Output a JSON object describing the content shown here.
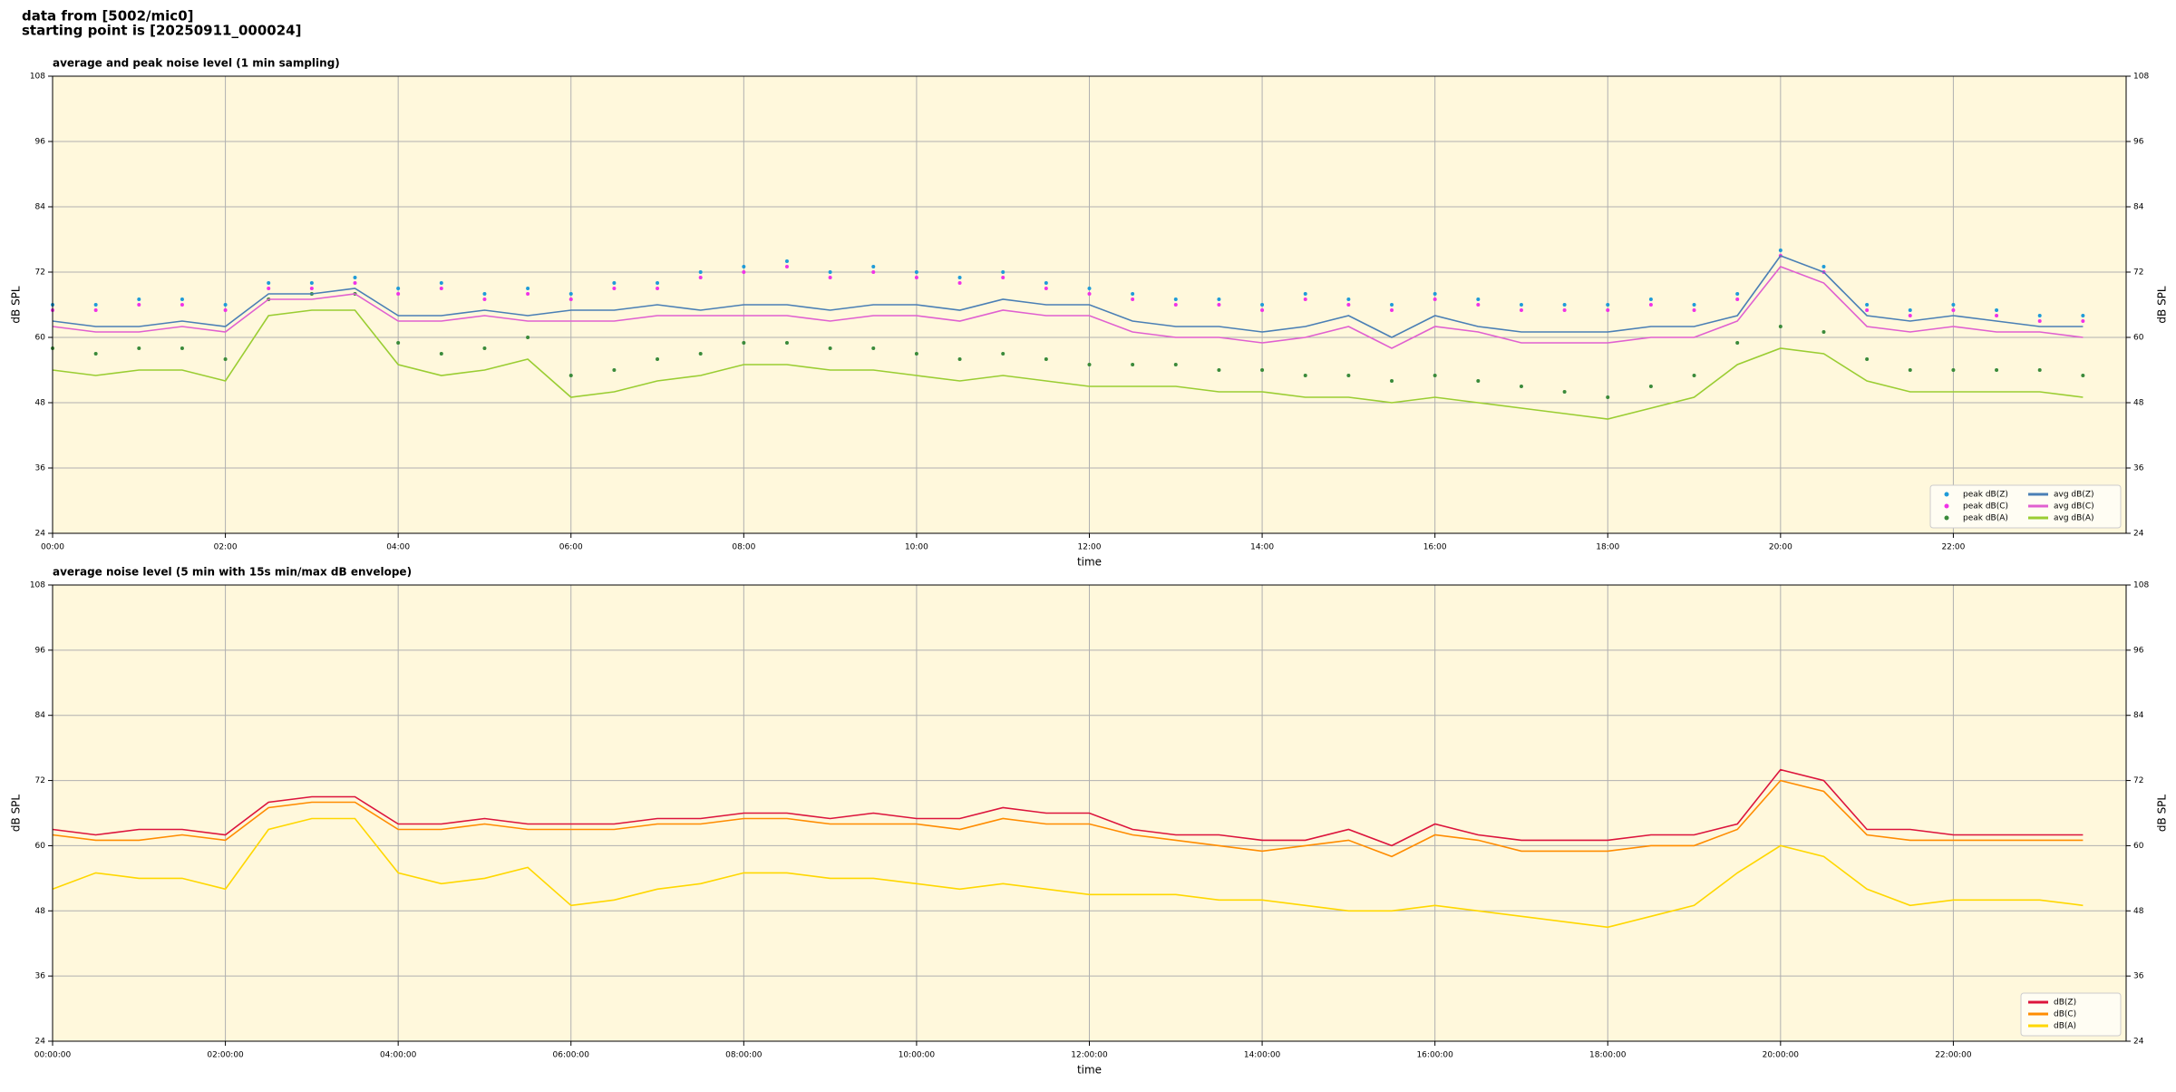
{
  "header": {
    "line1": "data from [5002/mic0]",
    "line2": "starting point is [20250911_000024]"
  },
  "chart_data": [
    {
      "type": "line",
      "title": "average and peak noise level (1 min sampling)",
      "xlabel": "time",
      "ylabel": "dB SPL",
      "xlim": [
        0,
        24
      ],
      "ylim": [
        24,
        108
      ],
      "yticks": [
        24,
        36,
        48,
        60,
        72,
        84,
        96,
        108
      ],
      "xticks": [
        {
          "value": 0,
          "label": "00:00"
        },
        {
          "value": 2,
          "label": "02:00"
        },
        {
          "value": 4,
          "label": "04:00"
        },
        {
          "value": 6,
          "label": "06:00"
        },
        {
          "value": 8,
          "label": "08:00"
        },
        {
          "value": 10,
          "label": "10:00"
        },
        {
          "value": 12,
          "label": "12:00"
        },
        {
          "value": 14,
          "label": "14:00"
        },
        {
          "value": 16,
          "label": "16:00"
        },
        {
          "value": 18,
          "label": "18:00"
        },
        {
          "value": 20,
          "label": "20:00"
        },
        {
          "value": 22,
          "label": "22:00"
        }
      ],
      "grid": true,
      "legend": "lower right",
      "legend_columns": 2,
      "background": "#fff8dc",
      "x": [
        0,
        0.5,
        1,
        1.5,
        2,
        2.5,
        3,
        3.5,
        4,
        4.5,
        5,
        5.5,
        6,
        6.5,
        7,
        7.5,
        8,
        8.5,
        9,
        9.5,
        10,
        10.5,
        11,
        11.5,
        12,
        12.5,
        13,
        13.5,
        14,
        14.5,
        15,
        15.5,
        16,
        16.5,
        17,
        17.5,
        18,
        18.5,
        19,
        19.5,
        20,
        20.5,
        21,
        21.5,
        22,
        22.5,
        23,
        23.5
      ],
      "series": [
        {
          "name": "peak dB(Z)",
          "marker": "dot",
          "color": "#1f9bd8",
          "values": [
            66,
            66,
            67,
            67,
            66,
            70,
            70,
            71,
            69,
            70,
            68,
            69,
            68,
            70,
            70,
            72,
            73,
            74,
            72,
            73,
            72,
            71,
            72,
            70,
            69,
            68,
            67,
            67,
            66,
            68,
            67,
            66,
            68,
            67,
            66,
            66,
            66,
            67,
            66,
            68,
            76,
            73,
            66,
            65,
            66,
            65,
            64,
            64
          ]
        },
        {
          "name": "peak dB(C)",
          "marker": "dot",
          "color": "#f032e6",
          "values": [
            65,
            65,
            66,
            66,
            65,
            69,
            69,
            70,
            68,
            69,
            67,
            68,
            67,
            69,
            69,
            71,
            72,
            73,
            71,
            72,
            71,
            70,
            71,
            69,
            68,
            67,
            66,
            66,
            65,
            67,
            66,
            65,
            67,
            66,
            65,
            65,
            65,
            66,
            65,
            67,
            75,
            72,
            65,
            64,
            65,
            64,
            63,
            63
          ]
        },
        {
          "name": "peak dB(A)",
          "marker": "dot",
          "color": "#3a8a3a",
          "values": [
            58,
            57,
            58,
            58,
            56,
            67,
            68,
            68,
            59,
            57,
            58,
            60,
            53,
            54,
            56,
            57,
            59,
            59,
            58,
            58,
            57,
            56,
            57,
            56,
            55,
            55,
            55,
            54,
            54,
            53,
            53,
            52,
            53,
            52,
            51,
            50,
            49,
            51,
            53,
            59,
            62,
            61,
            56,
            54,
            54,
            54,
            54,
            53
          ]
        },
        {
          "name": "avg dB(Z)",
          "marker": "line",
          "color": "#4a7fb5",
          "values": [
            63,
            62,
            62,
            63,
            62,
            68,
            68,
            69,
            64,
            64,
            65,
            64,
            65,
            65,
            66,
            65,
            66,
            66,
            65,
            66,
            66,
            65,
            67,
            66,
            66,
            63,
            62,
            62,
            61,
            62,
            64,
            60,
            64,
            62,
            61,
            61,
            61,
            62,
            62,
            64,
            75,
            72,
            64,
            63,
            64,
            63,
            62,
            62
          ]
        },
        {
          "name": "avg dB(C)",
          "marker": "line",
          "color": "#e060d0",
          "values": [
            62,
            61,
            61,
            62,
            61,
            67,
            67,
            68,
            63,
            63,
            64,
            63,
            63,
            63,
            64,
            64,
            64,
            64,
            63,
            64,
            64,
            63,
            65,
            64,
            64,
            61,
            60,
            60,
            59,
            60,
            62,
            58,
            62,
            61,
            59,
            59,
            59,
            60,
            60,
            63,
            73,
            70,
            62,
            61,
            62,
            61,
            61,
            60
          ]
        },
        {
          "name": "avg dB(A)",
          "marker": "line",
          "color": "#9acd32",
          "values": [
            54,
            53,
            54,
            54,
            52,
            64,
            65,
            65,
            55,
            53,
            54,
            56,
            49,
            50,
            52,
            53,
            55,
            55,
            54,
            54,
            53,
            52,
            53,
            52,
            51,
            51,
            51,
            50,
            50,
            49,
            49,
            48,
            49,
            48,
            47,
            46,
            45,
            47,
            49,
            55,
            58,
            57,
            52,
            50,
            50,
            50,
            50,
            49
          ]
        }
      ]
    },
    {
      "type": "line",
      "title": "average noise level (5 min with 15s min/max dB envelope)",
      "xlabel": "time",
      "ylabel": "dB SPL",
      "xlim": [
        0,
        24
      ],
      "ylim": [
        24,
        108
      ],
      "yticks": [
        24,
        36,
        48,
        60,
        72,
        84,
        96,
        108
      ],
      "xticks": [
        {
          "value": 0,
          "label": "00:00:00"
        },
        {
          "value": 2,
          "label": "02:00:00"
        },
        {
          "value": 4,
          "label": "04:00:00"
        },
        {
          "value": 6,
          "label": "06:00:00"
        },
        {
          "value": 8,
          "label": "08:00:00"
        },
        {
          "value": 10,
          "label": "10:00:00"
        },
        {
          "value": 12,
          "label": "12:00:00"
        },
        {
          "value": 14,
          "label": "14:00:00"
        },
        {
          "value": 16,
          "label": "16:00:00"
        },
        {
          "value": 18,
          "label": "18:00:00"
        },
        {
          "value": 20,
          "label": "20:00:00"
        },
        {
          "value": 22,
          "label": "22:00:00"
        }
      ],
      "grid": true,
      "legend": "lower right",
      "legend_columns": 1,
      "background": "#fff8dc",
      "x": [
        0,
        0.5,
        1,
        1.5,
        2,
        2.5,
        3,
        3.5,
        4,
        4.5,
        5,
        5.5,
        6,
        6.5,
        7,
        7.5,
        8,
        8.5,
        9,
        9.5,
        10,
        10.5,
        11,
        11.5,
        12,
        12.5,
        13,
        13.5,
        14,
        14.5,
        15,
        15.5,
        16,
        16.5,
        17,
        17.5,
        18,
        18.5,
        19,
        19.5,
        20,
        20.5,
        21,
        21.5,
        22,
        22.5,
        23,
        23.5
      ],
      "series": [
        {
          "name": "dB(Z)",
          "marker": "line",
          "color": "#dc143c",
          "values": [
            63,
            62,
            63,
            63,
            62,
            68,
            69,
            69,
            64,
            64,
            65,
            64,
            64,
            64,
            65,
            65,
            66,
            66,
            65,
            66,
            65,
            65,
            67,
            66,
            66,
            63,
            62,
            62,
            61,
            61,
            63,
            60,
            64,
            62,
            61,
            61,
            61,
            62,
            62,
            64,
            74,
            72,
            63,
            63,
            62,
            62,
            62,
            62
          ]
        },
        {
          "name": "dB(C)",
          "marker": "line",
          "color": "#ff8c00",
          "values": [
            62,
            61,
            61,
            62,
            61,
            67,
            68,
            68,
            63,
            63,
            64,
            63,
            63,
            63,
            64,
            64,
            65,
            65,
            64,
            64,
            64,
            63,
            65,
            64,
            64,
            62,
            61,
            60,
            59,
            60,
            61,
            58,
            62,
            61,
            59,
            59,
            59,
            60,
            60,
            63,
            72,
            70,
            62,
            61,
            61,
            61,
            61,
            61
          ]
        },
        {
          "name": "dB(A)",
          "marker": "line",
          "color": "#ffd700",
          "values": [
            52,
            55,
            54,
            54,
            52,
            63,
            65,
            65,
            55,
            53,
            54,
            56,
            49,
            50,
            52,
            53,
            55,
            55,
            54,
            54,
            53,
            52,
            53,
            52,
            51,
            51,
            51,
            50,
            50,
            49,
            48,
            48,
            49,
            48,
            47,
            46,
            45,
            47,
            49,
            55,
            60,
            58,
            52,
            49,
            50,
            50,
            50,
            49
          ]
        }
      ]
    }
  ]
}
